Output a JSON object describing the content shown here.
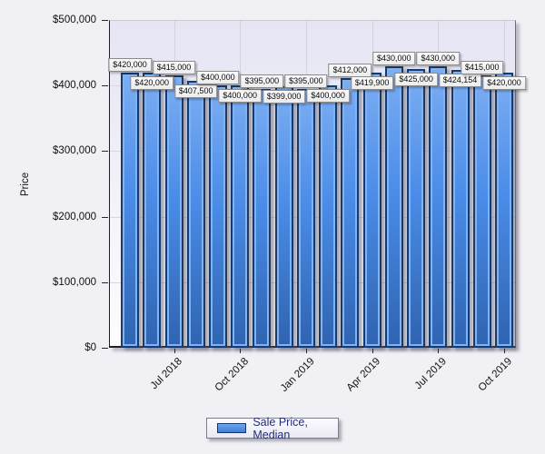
{
  "chart_data": {
    "type": "bar",
    "title": "",
    "ylabel": "Price",
    "xlabel": "",
    "ylim": [
      0,
      500000
    ],
    "grid": true,
    "legend_position": "bottom",
    "series": [
      {
        "name": "Sale Price, Median",
        "values": [
          420000,
          420000,
          415000,
          407500,
          400000,
          400000,
          395000,
          399000,
          395000,
          400000,
          412000,
          419900,
          430000,
          425000,
          430000,
          424154,
          415000,
          420000
        ],
        "value_labels": [
          "$420,000",
          "$420,000",
          "$415,000",
          "$407,500",
          "$400,000",
          "$400,000",
          "$395,000",
          "$399,000",
          "$395,000",
          "$400,000",
          "$412,000",
          "$419,900",
          "$430,000",
          "$425,000",
          "$430,000",
          "$424,154",
          "$415,000",
          "$420,000"
        ]
      }
    ],
    "x_ticks": [
      {
        "bar_index": 2,
        "label": "Jul 2018"
      },
      {
        "bar_index": 5,
        "label": "Oct 2018"
      },
      {
        "bar_index": 8,
        "label": "Jan 2019"
      },
      {
        "bar_index": 11,
        "label": "Apr 2019"
      },
      {
        "bar_index": 14,
        "label": "Jul 2019"
      },
      {
        "bar_index": 17,
        "label": "Oct 2019"
      }
    ],
    "y_ticks": [
      {
        "value": 0,
        "label": "$0"
      },
      {
        "value": 100000,
        "label": "$100,000"
      },
      {
        "value": 200000,
        "label": "$200,000"
      },
      {
        "value": 300000,
        "label": "$300,000"
      },
      {
        "value": 400000,
        "label": "$400,000"
      },
      {
        "value": 500000,
        "label": "$500,000"
      }
    ],
    "colors": {
      "bar_fill": "#4A8CE8",
      "bar_border": "#1A3A6E",
      "page_background": "#F1F0F5",
      "plot_background_top": "#E5E5F4",
      "legend_text": "#232D7A"
    }
  }
}
